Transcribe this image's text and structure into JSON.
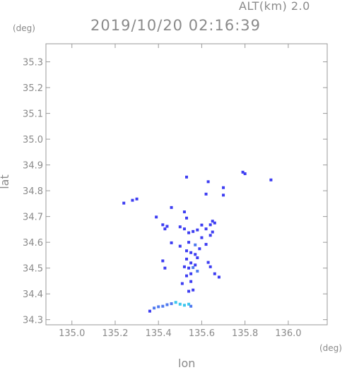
{
  "header": {
    "altitude_label": "ALT(km) 2.0",
    "timestamp": "2019/10/20 02:16:39",
    "y_unit": "(deg)",
    "x_unit": "(deg)"
  },
  "colors": {
    "frame": "#9a9a9a",
    "tick_text": "#8a8a8a",
    "echo_strong": "#3d3df2",
    "echo_medium": "#4f79ef",
    "echo_light": "#3cc6ee"
  },
  "chart_data": {
    "type": "scatter",
    "title": "2019/10/20 02:16:39",
    "subtitle": "ALT(km) 2.0",
    "xlabel": "lon",
    "ylabel": "lat",
    "xlim": [
      134.88,
      136.18
    ],
    "ylim": [
      34.28,
      35.37
    ],
    "xticks": [
      135.0,
      135.2,
      135.4,
      135.6,
      135.8,
      136.0
    ],
    "xtick_labels": [
      "135.0",
      "135.2",
      "135.4",
      "135.6",
      "135.8",
      "136.0"
    ],
    "yticks": [
      34.3,
      34.4,
      34.5,
      34.6,
      34.7,
      34.8,
      34.9,
      35.0,
      35.1,
      35.2,
      35.3
    ],
    "ytick_labels": [
      "34.3",
      "34.4",
      "34.5",
      "34.6",
      "34.7",
      "34.8",
      "34.9",
      "35.0",
      "35.1",
      "35.2",
      "35.3"
    ],
    "grid": false,
    "points": [
      {
        "lon": 135.79,
        "lat": 34.872,
        "c": "strong"
      },
      {
        "lon": 135.8,
        "lat": 34.866,
        "c": "strong"
      },
      {
        "lon": 135.92,
        "lat": 34.842,
        "c": "strong"
      },
      {
        "lon": 135.53,
        "lat": 34.853,
        "c": "strong"
      },
      {
        "lon": 135.63,
        "lat": 34.835,
        "c": "strong"
      },
      {
        "lon": 135.62,
        "lat": 34.787,
        "c": "strong"
      },
      {
        "lon": 135.7,
        "lat": 34.812,
        "c": "strong"
      },
      {
        "lon": 135.7,
        "lat": 34.783,
        "c": "strong"
      },
      {
        "lon": 135.24,
        "lat": 34.752,
        "c": "strong"
      },
      {
        "lon": 135.28,
        "lat": 34.763,
        "c": "strong"
      },
      {
        "lon": 135.3,
        "lat": 34.768,
        "c": "strong"
      },
      {
        "lon": 135.39,
        "lat": 34.698,
        "c": "strong"
      },
      {
        "lon": 135.46,
        "lat": 34.735,
        "c": "strong"
      },
      {
        "lon": 135.52,
        "lat": 34.718,
        "c": "strong"
      },
      {
        "lon": 135.53,
        "lat": 34.694,
        "c": "strong"
      },
      {
        "lon": 135.42,
        "lat": 34.668,
        "c": "strong"
      },
      {
        "lon": 135.43,
        "lat": 34.652,
        "c": "strong"
      },
      {
        "lon": 135.44,
        "lat": 34.662,
        "c": "strong"
      },
      {
        "lon": 135.5,
        "lat": 34.66,
        "c": "strong"
      },
      {
        "lon": 135.52,
        "lat": 34.652,
        "c": "strong"
      },
      {
        "lon": 135.54,
        "lat": 34.637,
        "c": "strong"
      },
      {
        "lon": 135.56,
        "lat": 34.642,
        "c": "strong"
      },
      {
        "lon": 135.58,
        "lat": 34.648,
        "c": "strong"
      },
      {
        "lon": 135.6,
        "lat": 34.667,
        "c": "strong"
      },
      {
        "lon": 135.62,
        "lat": 34.652,
        "c": "strong"
      },
      {
        "lon": 135.64,
        "lat": 34.668,
        "c": "strong"
      },
      {
        "lon": 135.65,
        "lat": 34.682,
        "c": "strong"
      },
      {
        "lon": 135.66,
        "lat": 34.675,
        "c": "strong"
      },
      {
        "lon": 135.65,
        "lat": 34.64,
        "c": "strong"
      },
      {
        "lon": 135.64,
        "lat": 34.627,
        "c": "strong"
      },
      {
        "lon": 135.6,
        "lat": 34.618,
        "c": "strong"
      },
      {
        "lon": 135.62,
        "lat": 34.592,
        "c": "strong"
      },
      {
        "lon": 135.46,
        "lat": 34.598,
        "c": "strong"
      },
      {
        "lon": 135.5,
        "lat": 34.585,
        "c": "strong"
      },
      {
        "lon": 135.54,
        "lat": 34.6,
        "c": "strong"
      },
      {
        "lon": 135.57,
        "lat": 34.59,
        "c": "medium"
      },
      {
        "lon": 135.59,
        "lat": 34.575,
        "c": "strong"
      },
      {
        "lon": 135.53,
        "lat": 34.567,
        "c": "strong"
      },
      {
        "lon": 135.55,
        "lat": 34.56,
        "c": "strong"
      },
      {
        "lon": 135.57,
        "lat": 34.553,
        "c": "strong"
      },
      {
        "lon": 135.58,
        "lat": 34.54,
        "c": "strong"
      },
      {
        "lon": 135.53,
        "lat": 34.535,
        "c": "strong"
      },
      {
        "lon": 135.55,
        "lat": 34.52,
        "c": "strong"
      },
      {
        "lon": 135.52,
        "lat": 34.505,
        "c": "strong"
      },
      {
        "lon": 135.54,
        "lat": 34.5,
        "c": "strong"
      },
      {
        "lon": 135.56,
        "lat": 34.502,
        "c": "medium"
      },
      {
        "lon": 135.57,
        "lat": 34.512,
        "c": "strong"
      },
      {
        "lon": 135.58,
        "lat": 34.488,
        "c": "medium"
      },
      {
        "lon": 135.55,
        "lat": 34.478,
        "c": "strong"
      },
      {
        "lon": 135.53,
        "lat": 34.47,
        "c": "strong"
      },
      {
        "lon": 135.42,
        "lat": 34.528,
        "c": "strong"
      },
      {
        "lon": 135.43,
        "lat": 34.5,
        "c": "strong"
      },
      {
        "lon": 135.63,
        "lat": 34.522,
        "c": "strong"
      },
      {
        "lon": 135.64,
        "lat": 34.505,
        "c": "strong"
      },
      {
        "lon": 135.66,
        "lat": 34.478,
        "c": "strong"
      },
      {
        "lon": 135.68,
        "lat": 34.465,
        "c": "strong"
      },
      {
        "lon": 135.51,
        "lat": 34.44,
        "c": "strong"
      },
      {
        "lon": 135.55,
        "lat": 34.448,
        "c": "strong"
      },
      {
        "lon": 135.56,
        "lat": 34.415,
        "c": "strong"
      },
      {
        "lon": 135.54,
        "lat": 34.41,
        "c": "strong"
      },
      {
        "lon": 135.48,
        "lat": 34.367,
        "c": "light"
      },
      {
        "lon": 135.46,
        "lat": 34.362,
        "c": "medium"
      },
      {
        "lon": 135.44,
        "lat": 34.358,
        "c": "medium"
      },
      {
        "lon": 135.42,
        "lat": 34.352,
        "c": "medium"
      },
      {
        "lon": 135.4,
        "lat": 34.35,
        "c": "medium"
      },
      {
        "lon": 135.38,
        "lat": 34.345,
        "c": "medium"
      },
      {
        "lon": 135.36,
        "lat": 34.333,
        "c": "strong"
      },
      {
        "lon": 135.5,
        "lat": 34.36,
        "c": "light"
      },
      {
        "lon": 135.52,
        "lat": 34.356,
        "c": "light"
      },
      {
        "lon": 135.54,
        "lat": 34.36,
        "c": "light"
      },
      {
        "lon": 135.55,
        "lat": 34.352,
        "c": "medium"
      }
    ]
  }
}
